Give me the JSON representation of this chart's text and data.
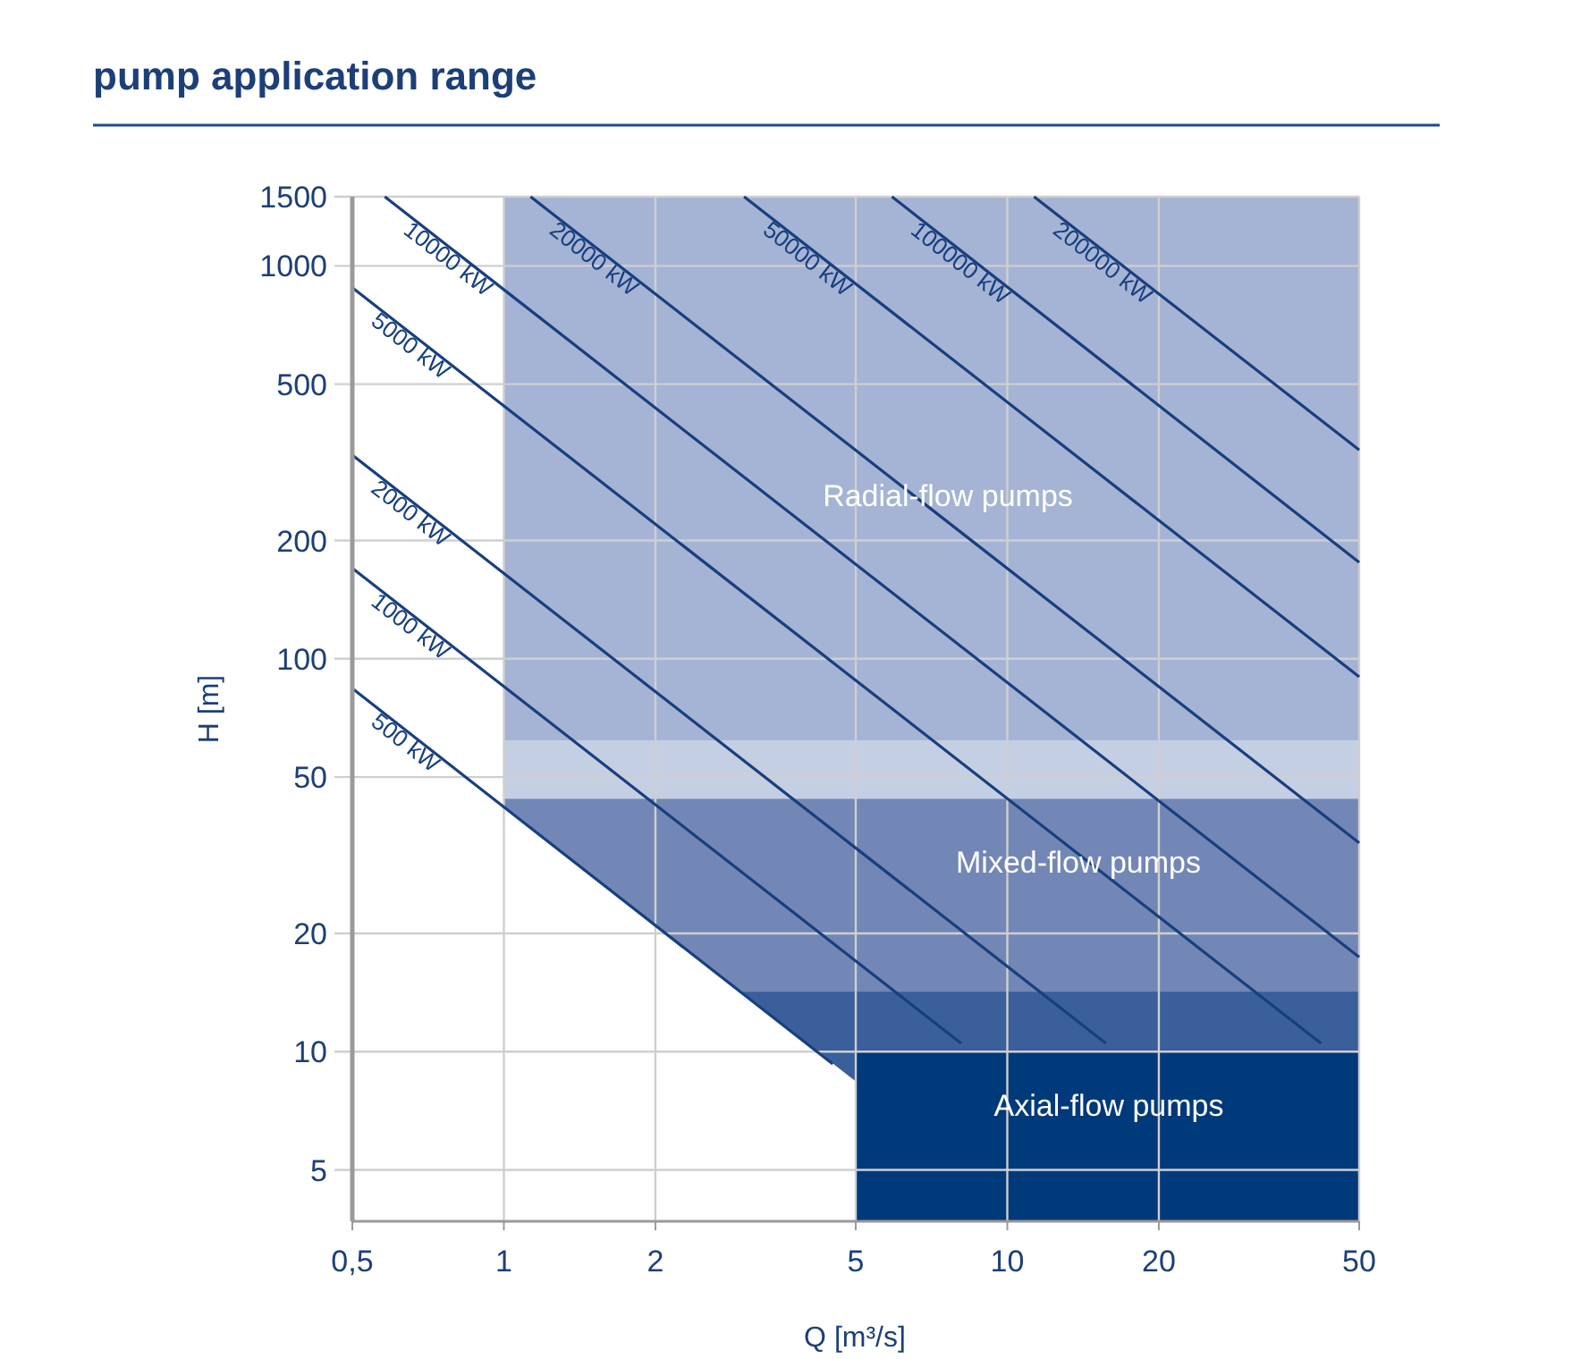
{
  "chart_data": {
    "type": "line",
    "title": "pump application range",
    "xlabel": "Q [m³/s]",
    "ylabel": "H [m]",
    "log": "xy",
    "grid": true,
    "legend": false,
    "marker": "none",
    "line_style": "solid",
    "xlim": [
      0.5,
      50
    ],
    "ylim": [
      3.7,
      1500
    ],
    "xticks": [
      {
        "value": 0.5,
        "label": "0,5"
      },
      1,
      2,
      5,
      10,
      20,
      50
    ],
    "yticks": [
      5,
      10,
      20,
      50,
      100,
      200,
      500,
      1000,
      1500
    ],
    "annotations": [
      "Radial-flow pumps",
      "Mixed-flow pumps",
      "Axial-flow pumps"
    ],
    "series": [
      {
        "type": "area",
        "color": "#a5b3d5",
        "x": [
          1,
          50
        ],
        "values": [
          1500,
          1500
        ]
      },
      {
        "type": "area",
        "color": "#c4cfe4",
        "x": [
          1,
          50
        ],
        "values": [
          62,
          62
        ]
      },
      {
        "type": "area",
        "color": "#7287b5",
        "x": [
          1,
          50
        ],
        "values": [
          44,
          44
        ]
      },
      {
        "type": "area",
        "color": "#3a5f9a",
        "x": [
          1,
          50
        ],
        "values": [
          14.2,
          14.2
        ]
      },
      {
        "type": "area",
        "color": "#ffffff",
        "x": [
          1,
          5
        ],
        "values": [
          42,
          8.4
        ]
      },
      {
        "type": "area",
        "color": "#003a7a",
        "x": [
          5,
          50
        ],
        "values": [
          10,
          10
        ]
      },
      {
        "name": "500 kW",
        "color": "#173f7f",
        "x": [
          0.5,
          4.5
        ],
        "values": [
          84,
          9.3
        ]
      },
      {
        "name": "1000 kW",
        "color": "#173f7f",
        "x": [
          0.5,
          8.1
        ],
        "values": [
          170,
          10.5
        ]
      },
      {
        "name": "2000 kW",
        "color": "#173f7f",
        "x": [
          0.5,
          15.7
        ],
        "values": [
          330,
          10.5
        ]
      },
      {
        "name": "5000 kW",
        "color": "#173f7f",
        "x": [
          0.5,
          42
        ],
        "values": [
          880,
          10.5
        ]
      },
      {
        "name": "10000 kW",
        "color": "#173f7f",
        "x": [
          0.58,
          50
        ],
        "values": [
          1500,
          17.4
        ]
      },
      {
        "name": "20000 kW",
        "color": "#173f7f",
        "x": [
          1.13,
          50
        ],
        "values": [
          1500,
          34
        ]
      },
      {
        "name": "50000 kW",
        "color": "#173f7f",
        "x": [
          3,
          50
        ],
        "values": [
          1500,
          90
        ]
      },
      {
        "name": "100000 kW",
        "color": "#173f7f",
        "x": [
          5.9,
          50
        ],
        "values": [
          1500,
          176
        ]
      },
      {
        "name": "200000 kW",
        "color": "#173f7f",
        "x": [
          11.3,
          50
        ],
        "values": [
          1500,
          340
        ]
      }
    ]
  }
}
